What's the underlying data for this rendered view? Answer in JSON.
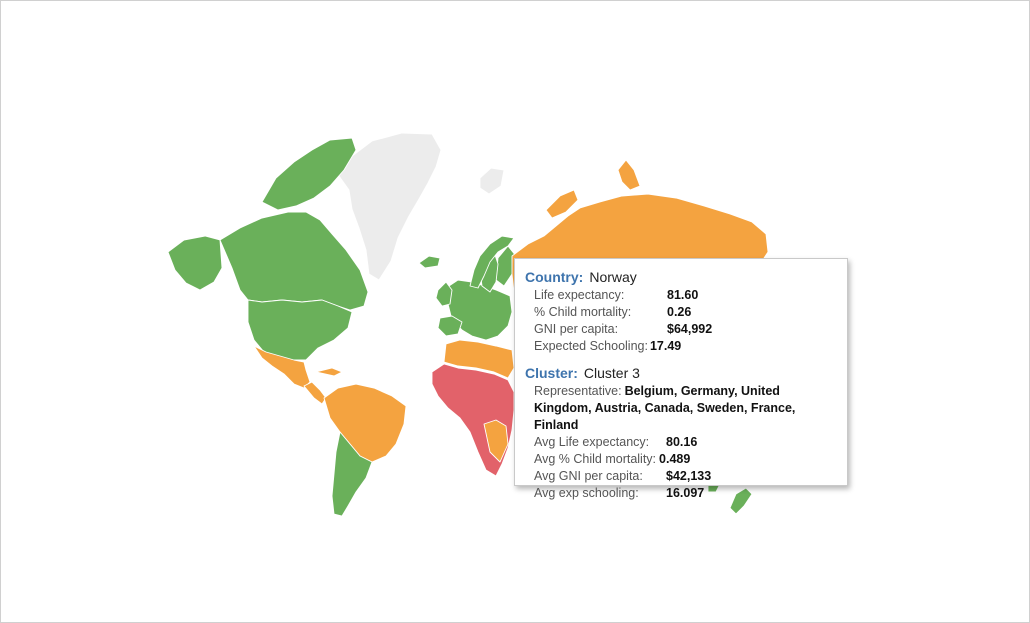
{
  "map": {
    "colors": {
      "cluster_green": "#6ab05a",
      "cluster_orange": "#f4a340",
      "cluster_red": "#e2626a",
      "no_data": "#ececec",
      "highlight_outline": "#000000"
    },
    "highlighted_country": "Norway"
  },
  "tooltip": {
    "country_key": "Country:",
    "country_value": "Norway",
    "stats": [
      {
        "label": "Life expectancy:",
        "value": "81.60"
      },
      {
        "label": "% Child mortality:",
        "value": "0.26"
      },
      {
        "label": "GNI per capita:",
        "value": "$64,992"
      },
      {
        "label": "Expected Schooling:",
        "value": "17.49"
      }
    ],
    "cluster_key": "Cluster:",
    "cluster_value": "Cluster 3",
    "representative_label": "Representative:",
    "representative_value": "Belgium, Germany, United Kingdom, Austria, Canada, Sweden, France, Finland",
    "cluster_stats": [
      {
        "label": "Avg Life expectancy:",
        "value": "80.16"
      },
      {
        "label": "Avg % Child mortality:",
        "value": "0.489"
      },
      {
        "label": "Avg GNI per capita:",
        "value": "$42,133"
      },
      {
        "label": "Avg exp schooling:",
        "value": "16.097"
      }
    ]
  }
}
